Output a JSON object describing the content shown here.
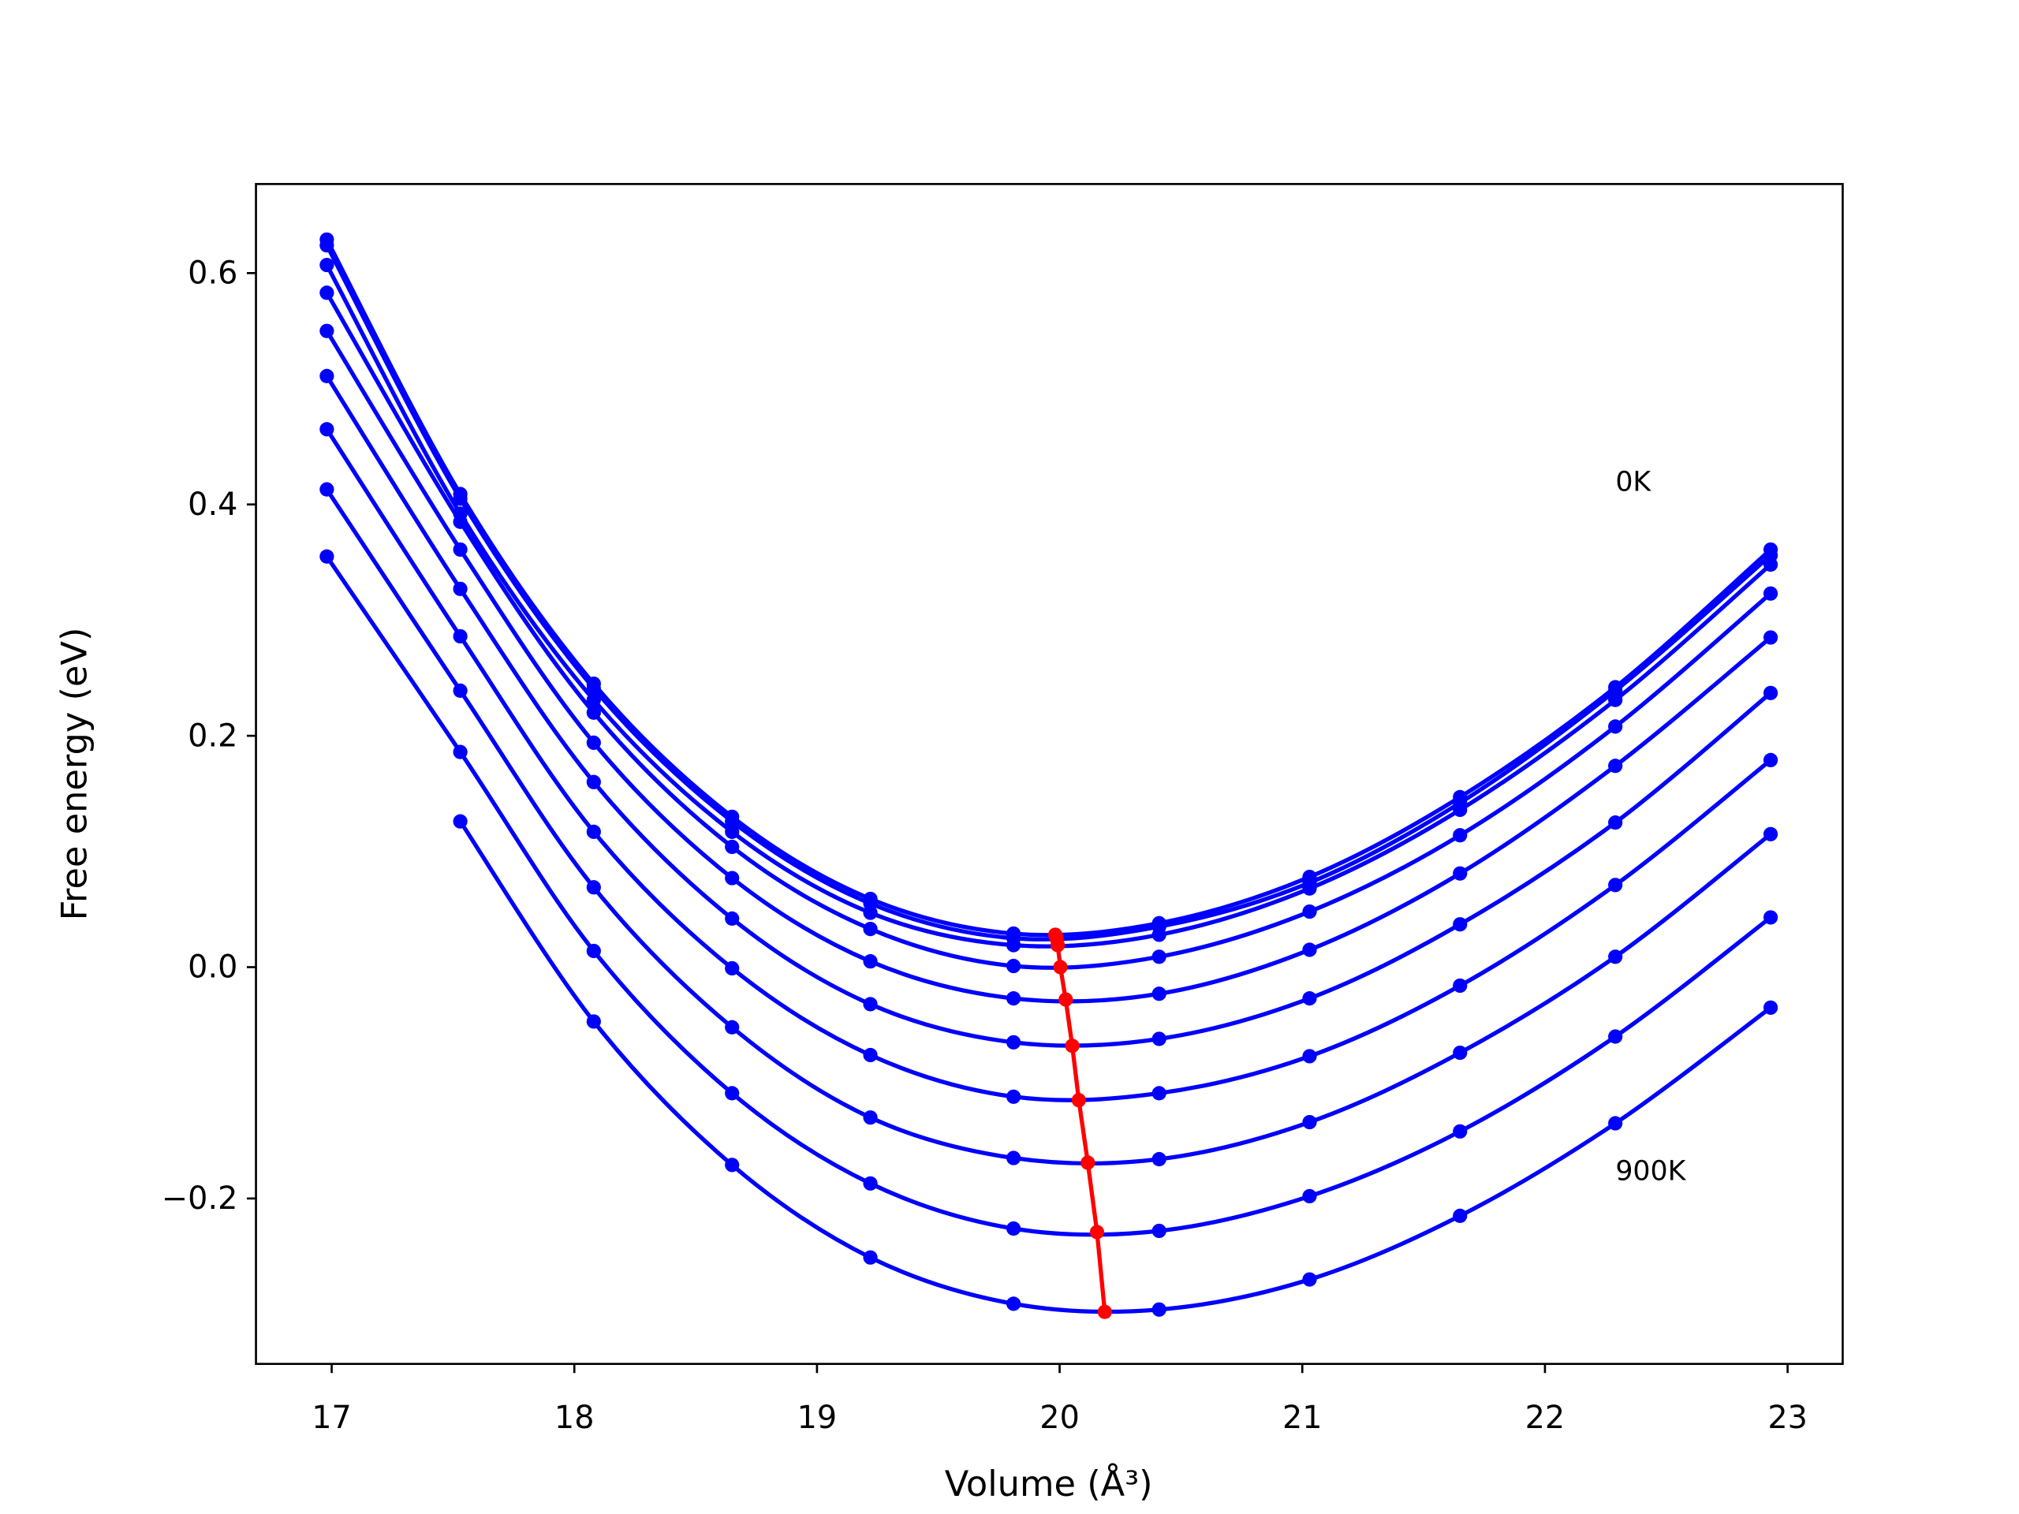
{
  "chart_data": {
    "type": "line",
    "xlabel": "Volume (Å³)",
    "ylabel": "Free energy (eV)",
    "x": [
      16.98,
      17.53,
      18.08,
      18.65,
      19.22,
      19.81,
      20.41,
      21.03,
      21.65,
      22.29,
      22.93
    ],
    "series": [
      {
        "color": "#0000ff",
        "values": [
          0.629,
          0.409,
          0.245,
          0.13,
          0.059,
          0.029,
          0.038,
          0.078,
          0.147,
          0.242,
          0.361
        ]
      },
      {
        "color": "#0000ff",
        "values": [
          0.624,
          0.405,
          0.241,
          0.126,
          0.055,
          0.025,
          0.035,
          0.073,
          0.142,
          0.239,
          0.356
        ]
      },
      {
        "color": "#0000ff",
        "values": [
          0.607,
          0.392,
          0.231,
          0.117,
          0.047,
          0.019,
          0.028,
          0.068,
          0.136,
          0.231,
          0.348
        ]
      },
      {
        "color": "#0000ff",
        "values": [
          0.583,
          0.385,
          0.22,
          0.104,
          0.033,
          0.001,
          0.009,
          0.048,
          0.114,
          0.208,
          0.323
        ]
      },
      {
        "color": "#0000ff",
        "values": [
          0.55,
          0.361,
          0.194,
          0.077,
          0.005,
          -0.027,
          -0.023,
          0.015,
          0.081,
          0.174,
          0.285
        ]
      },
      {
        "color": "#0000ff",
        "values": [
          0.511,
          0.327,
          0.16,
          0.042,
          -0.032,
          -0.065,
          -0.062,
          -0.027,
          0.037,
          0.125,
          0.237
        ]
      },
      {
        "color": "#0000ff",
        "values": [
          0.465,
          0.286,
          0.117,
          -0.001,
          -0.076,
          -0.112,
          -0.109,
          -0.077,
          -0.016,
          0.071,
          0.179
        ]
      },
      {
        "color": "#0000ff",
        "values": [
          0.413,
          0.239,
          0.069,
          -0.052,
          -0.13,
          -0.165,
          -0.166,
          -0.134,
          -0.074,
          0.009,
          0.115
        ]
      },
      {
        "color": "#0000ff",
        "values": [
          0.355,
          0.186,
          0.014,
          -0.109,
          -0.187,
          -0.226,
          -0.228,
          -0.198,
          -0.142,
          -0.06,
          0.043
        ]
      },
      {
        "color": "#0000ff",
        "values": [
          null,
          0.126,
          -0.047,
          -0.171,
          -0.251,
          -0.291,
          -0.296,
          -0.27,
          -0.215,
          -0.135,
          -0.035
        ]
      }
    ],
    "minima": {
      "color": "#ff0000",
      "x": [
        19.982,
        19.987,
        19.992,
        20.003,
        20.025,
        20.052,
        20.079,
        20.116,
        20.154,
        20.186
      ],
      "values": [
        0.028,
        0.025,
        0.019,
        0.0,
        -0.028,
        -0.068,
        -0.115,
        -0.169,
        -0.229,
        -0.298
      ]
    },
    "annotations": [
      "0K",
      "900K"
    ],
    "xlim": [
      16.688,
      23.227
    ],
    "ylim": [
      -0.343,
      0.677
    ],
    "xticks": [
      17,
      18,
      19,
      20,
      21,
      22,
      23
    ],
    "yticks": [
      {
        "value": -0.2,
        "label": "−0.2"
      },
      {
        "value": 0,
        "label": "0.0"
      },
      0.2,
      0.4,
      0.6
    ]
  }
}
